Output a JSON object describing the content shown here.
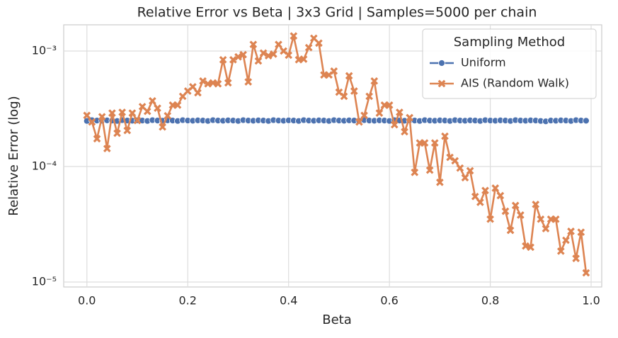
{
  "chart_data": {
    "type": "line",
    "title": "Relative Error vs Beta | 3x3 Grid | Samples=5000 per chain",
    "x_label": "Beta",
    "y_label": "Relative Error (log)",
    "log_y": true,
    "grid": true,
    "legend_title": "Sampling Method",
    "legend_position": "upper right",
    "xlim": [
      -0.046,
      1.021
    ],
    "ylim": [
      9.06e-06,
      0.001686
    ],
    "xticks": [
      {
        "value": 0,
        "label": "0.0"
      },
      0.2,
      0.4,
      0.6,
      0.8,
      {
        "value": 1,
        "label": "1.0"
      }
    ],
    "yticks": [
      {
        "value": 1e-05,
        "label": "10⁻⁵"
      },
      {
        "value": 0.0001,
        "label": "10⁻⁴"
      },
      {
        "value": 0.001,
        "label": "10⁻³"
      }
    ],
    "x": [
      0,
      0.01,
      0.02,
      0.03,
      0.04,
      0.05,
      0.06,
      0.07,
      0.08,
      0.09,
      0.1,
      0.11,
      0.12,
      0.13,
      0.14,
      0.15,
      0.16,
      0.17,
      0.18,
      0.19,
      0.2,
      0.21,
      0.22,
      0.23,
      0.24,
      0.25,
      0.26,
      0.27,
      0.28,
      0.29,
      0.3,
      0.31,
      0.32,
      0.33,
      0.34,
      0.35,
      0.36,
      0.37,
      0.38,
      0.39,
      0.4,
      0.41,
      0.42,
      0.43,
      0.44,
      0.45,
      0.46,
      0.47,
      0.48,
      0.49,
      0.5,
      0.51,
      0.52,
      0.53,
      0.54,
      0.55,
      0.56,
      0.57,
      0.58,
      0.59,
      0.6,
      0.61,
      0.62,
      0.63,
      0.64,
      0.65,
      0.66,
      0.67,
      0.68,
      0.69,
      0.7,
      0.71,
      0.72,
      0.73,
      0.74,
      0.75,
      0.76,
      0.77,
      0.78,
      0.79,
      0.8,
      0.81,
      0.82,
      0.83,
      0.84,
      0.85,
      0.86,
      0.87,
      0.88,
      0.89,
      0.9,
      0.91,
      0.92,
      0.93,
      0.94,
      0.95,
      0.96,
      0.97,
      0.98,
      0.99
    ],
    "series": [
      {
        "name": "Uniform",
        "color": "#4c72b0",
        "marker": "circle",
        "values": [
          0.000248,
          0.000252,
          0.00025,
          0.000249,
          0.000251,
          0.00025,
          0.000248,
          0.000252,
          0.00025,
          0.000249,
          0.000251,
          0.00025,
          0.000248,
          0.000252,
          0.00025,
          0.000249,
          0.000251,
          0.00025,
          0.000248,
          0.000252,
          0.00025,
          0.000249,
          0.000251,
          0.00025,
          0.000248,
          0.000252,
          0.00025,
          0.000249,
          0.000251,
          0.00025,
          0.000248,
          0.000252,
          0.00025,
          0.000249,
          0.000251,
          0.00025,
          0.000248,
          0.000252,
          0.00025,
          0.000249,
          0.000251,
          0.00025,
          0.000248,
          0.000252,
          0.00025,
          0.000249,
          0.000251,
          0.00025,
          0.000248,
          0.000252,
          0.00025,
          0.000249,
          0.000251,
          0.00025,
          0.000248,
          0.000252,
          0.00025,
          0.000249,
          0.000251,
          0.00025,
          0.000248,
          0.000252,
          0.00025,
          0.000249,
          0.000251,
          0.00025,
          0.000248,
          0.000252,
          0.00025,
          0.000249,
          0.000251,
          0.00025,
          0.000248,
          0.000252,
          0.00025,
          0.000249,
          0.000251,
          0.00025,
          0.000248,
          0.000252,
          0.00025,
          0.000249,
          0.000251,
          0.00025,
          0.000248,
          0.000252,
          0.00025,
          0.000249,
          0.000251,
          0.00025,
          0.000248,
          0.000246,
          0.00025,
          0.000249,
          0.000251,
          0.00025,
          0.000248,
          0.000252,
          0.00025,
          0.000249
        ]
      },
      {
        "name": "AIS (Random Walk)",
        "color": "#dd8452",
        "marker": "x",
        "values": [
          0.000277,
          0.000243,
          0.000174,
          0.00027,
          0.000143,
          0.00029,
          0.000194,
          0.000295,
          0.000205,
          0.00029,
          0.00025,
          0.00033,
          0.0003,
          0.00037,
          0.00032,
          0.00022,
          0.000275,
          0.00034,
          0.00034,
          0.000405,
          0.00045,
          0.00049,
          0.000435,
          0.00055,
          0.00052,
          0.00053,
          0.00052,
          0.00084,
          0.00053,
          0.00084,
          0.00089,
          0.00093,
          0.00054,
          0.00114,
          0.00082,
          0.00096,
          0.00091,
          0.00094,
          0.00114,
          0.001,
          0.00092,
          0.00135,
          0.00084,
          0.00085,
          0.00107,
          0.00129,
          0.00117,
          0.00062,
          0.00062,
          0.00067,
          0.00044,
          0.000405,
          0.00061,
          0.00045,
          0.000243,
          0.000277,
          0.000405,
          0.00055,
          0.00029,
          0.00034,
          0.00034,
          0.00023,
          0.000295,
          0.0002,
          0.000265,
          8.9e-05,
          0.00016,
          0.00016,
          9.3e-05,
          0.00016,
          7.3e-05,
          0.000183,
          0.00012,
          0.000112,
          9.7e-05,
          8e-05,
          9.2e-05,
          5.5e-05,
          4.9e-05,
          6.2e-05,
          3.5e-05,
          6.5e-05,
          5.6e-05,
          4.1e-05,
          2.8e-05,
          4.6e-05,
          3.8e-05,
          2.05e-05,
          2e-05,
          4.7e-05,
          3.5e-05,
          2.9e-05,
          3.5e-05,
          3.5e-05,
          1.85e-05,
          2.3e-05,
          2.75e-05,
          1.6e-05,
          2.7e-05,
          1.2e-05
        ]
      }
    ]
  }
}
